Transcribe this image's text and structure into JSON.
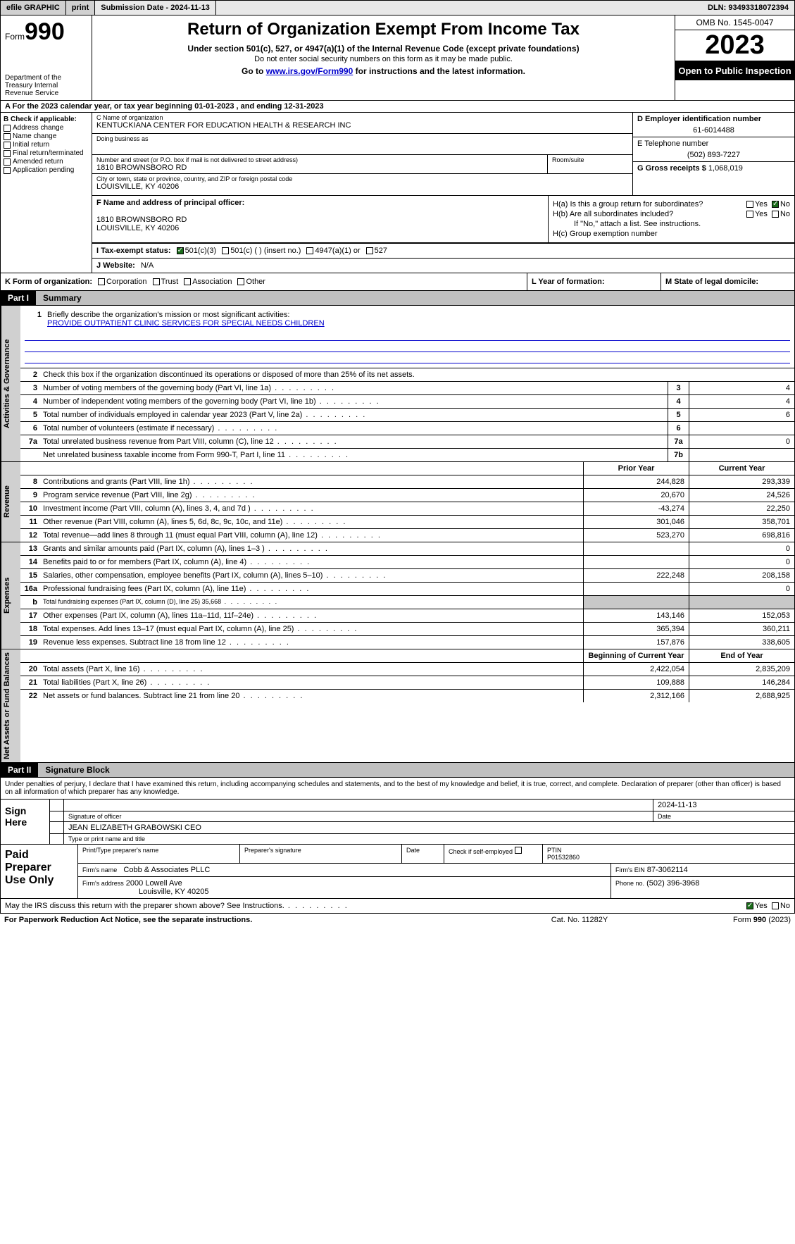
{
  "topbar": {
    "efile": "efile GRAPHIC",
    "print": "print",
    "submission": "Submission Date - 2024-11-13",
    "dln": "DLN: 93493318072394"
  },
  "header": {
    "form_prefix": "Form",
    "form_num": "990",
    "title": "Return of Organization Exempt From Income Tax",
    "subtitle": "Under section 501(c), 527, or 4947(a)(1) of the Internal Revenue Code (except private foundations)",
    "note1": "Do not enter social security numbers on this form as it may be made public.",
    "go_prefix": "Go to ",
    "go_link": "www.irs.gov/Form990",
    "go_suffix": " for instructions and the latest information.",
    "dept": "Department of the Treasury Internal Revenue Service",
    "omb": "OMB No. 1545-0047",
    "year": "2023",
    "open": "Open to Public Inspection"
  },
  "row_a": "For the 2023 calendar year, or tax year beginning 01-01-2023    , and ending 12-31-2023",
  "box_b": {
    "label": "B Check if applicable:",
    "items": [
      "Address change",
      "Name change",
      "Initial return",
      "Final return/terminated",
      "Amended return",
      "Application pending"
    ]
  },
  "box_c": {
    "name_lbl": "C Name of organization",
    "name": "KENTUCKIANA CENTER FOR EDUCATION HEALTH & RESEARCH INC",
    "dba_lbl": "Doing business as",
    "addr_lbl": "Number and street (or P.O. box if mail is not delivered to street address)",
    "addr": "1810 BROWNSBORO RD",
    "room_lbl": "Room/suite",
    "city_lbl": "City or town, state or province, country, and ZIP or foreign postal code",
    "city": "LOUISVILLE, KY  40206"
  },
  "box_d": {
    "lbl": "D Employer identification number",
    "val": "61-6014488"
  },
  "box_e": {
    "lbl": "E Telephone number",
    "val": "(502) 893-7227"
  },
  "box_g": {
    "lbl": "G Gross receipts $",
    "val": "1,068,019"
  },
  "box_f": {
    "lbl": "F  Name and address of principal officer:",
    "line1": "1810 BROWNSBORO RD",
    "line2": "LOUISVILLE, KY  40206"
  },
  "box_h": {
    "a_lbl": "H(a)  Is this a group return for subordinates?",
    "b_lbl": "H(b)  Are all subordinates included?",
    "b_note": "If \"No,\" attach a list. See instructions.",
    "c_lbl": "H(c)  Group exemption number",
    "yes": "Yes",
    "no": "No"
  },
  "box_i": {
    "lbl": "I    Tax-exempt status:",
    "opt1": "501(c)(3)",
    "opt2": "501(c) (  ) (insert no.)",
    "opt3": "4947(a)(1) or",
    "opt4": "527"
  },
  "box_j": {
    "lbl": "J   Website:",
    "val": "N/A"
  },
  "box_k": {
    "lbl": "K Form of organization:",
    "opts": [
      "Corporation",
      "Trust",
      "Association",
      "Other"
    ]
  },
  "box_l": "L Year of formation:",
  "box_m": "M State of legal domicile:",
  "part1": {
    "tag": "Part I",
    "title": "Summary"
  },
  "mission": {
    "lbl": "Briefly describe the organization's mission or most significant activities:",
    "text": "PROVIDE OUTPATIENT CLINIC SERVICES FOR SPECIAL NEEDS CHILDREN"
  },
  "line2": "Check this box      if the organization discontinued its operations or disposed of more than 25% of its net assets.",
  "gov_rows": [
    {
      "n": "3",
      "t": "Number of voting members of the governing body (Part VI, line 1a)",
      "box": "3",
      "v": "4"
    },
    {
      "n": "4",
      "t": "Number of independent voting members of the governing body (Part VI, line 1b)",
      "box": "4",
      "v": "4"
    },
    {
      "n": "5",
      "t": "Total number of individuals employed in calendar year 2023 (Part V, line 2a)",
      "box": "5",
      "v": "6"
    },
    {
      "n": "6",
      "t": "Total number of volunteers (estimate if necessary)",
      "box": "6",
      "v": ""
    },
    {
      "n": "7a",
      "t": "Total unrelated business revenue from Part VIII, column (C), line 12",
      "box": "7a",
      "v": "0"
    },
    {
      "n": "",
      "t": "Net unrelated business taxable income from Form 990-T, Part I, line 11",
      "box": "7b",
      "v": ""
    }
  ],
  "col_hdrs": {
    "prior": "Prior Year",
    "current": "Current Year",
    "begin": "Beginning of Current Year",
    "end": "End of Year"
  },
  "rev_rows": [
    {
      "n": "8",
      "t": "Contributions and grants (Part VIII, line 1h)",
      "p": "244,828",
      "c": "293,339"
    },
    {
      "n": "9",
      "t": "Program service revenue (Part VIII, line 2g)",
      "p": "20,670",
      "c": "24,526"
    },
    {
      "n": "10",
      "t": "Investment income (Part VIII, column (A), lines 3, 4, and 7d )",
      "p": "-43,274",
      "c": "22,250"
    },
    {
      "n": "11",
      "t": "Other revenue (Part VIII, column (A), lines 5, 6d, 8c, 9c, 10c, and 11e)",
      "p": "301,046",
      "c": "358,701"
    },
    {
      "n": "12",
      "t": "Total revenue—add lines 8 through 11 (must equal Part VIII, column (A), line 12)",
      "p": "523,270",
      "c": "698,816"
    }
  ],
  "exp_rows": [
    {
      "n": "13",
      "t": "Grants and similar amounts paid (Part IX, column (A), lines 1–3 )",
      "p": "",
      "c": "0"
    },
    {
      "n": "14",
      "t": "Benefits paid to or for members (Part IX, column (A), line 4)",
      "p": "",
      "c": "0"
    },
    {
      "n": "15",
      "t": "Salaries, other compensation, employee benefits (Part IX, column (A), lines 5–10)",
      "p": "222,248",
      "c": "208,158"
    },
    {
      "n": "16a",
      "t": "Professional fundraising fees (Part IX, column (A), line 11e)",
      "p": "",
      "c": "0"
    },
    {
      "n": "b",
      "t": "Total fundraising expenses (Part IX, column (D), line 25) 35,668",
      "p": "",
      "c": "",
      "shade": true,
      "small": true
    },
    {
      "n": "17",
      "t": "Other expenses (Part IX, column (A), lines 11a–11d, 11f–24e)",
      "p": "143,146",
      "c": "152,053"
    },
    {
      "n": "18",
      "t": "Total expenses. Add lines 13–17 (must equal Part IX, column (A), line 25)",
      "p": "365,394",
      "c": "360,211"
    },
    {
      "n": "19",
      "t": "Revenue less expenses. Subtract line 18 from line 12",
      "p": "157,876",
      "c": "338,605"
    }
  ],
  "net_rows": [
    {
      "n": "20",
      "t": "Total assets (Part X, line 16)",
      "p": "2,422,054",
      "c": "2,835,209"
    },
    {
      "n": "21",
      "t": "Total liabilities (Part X, line 26)",
      "p": "109,888",
      "c": "146,284"
    },
    {
      "n": "22",
      "t": "Net assets or fund balances. Subtract line 21 from line 20",
      "p": "2,312,166",
      "c": "2,688,925"
    }
  ],
  "vtabs": {
    "gov": "Activities & Governance",
    "rev": "Revenue",
    "exp": "Expenses",
    "net": "Net Assets or Fund Balances"
  },
  "part2": {
    "tag": "Part II",
    "title": "Signature Block"
  },
  "sig_intro": "Under penalties of perjury, I declare that I have examined this return, including accompanying schedules and statements, and to the best of my knowledge and belief, it is true, correct, and complete. Declaration of preparer (other than officer) is based on all information of which preparer has any knowledge.",
  "sign": {
    "here": "Sign Here",
    "date": "2024-11-13",
    "sig_lbl": "Signature of officer",
    "date_lbl": "Date",
    "officer": "JEAN ELIZABETH GRABOWSKI CEO",
    "type_lbl": "Type or print name and title"
  },
  "paid": {
    "lbl": "Paid Preparer Use Only",
    "name_lbl": "Print/Type preparer's name",
    "sig_lbl": "Preparer's signature",
    "date_lbl": "Date",
    "chk_lbl": "Check        if self-employed",
    "ptin_lbl": "PTIN",
    "ptin": "P01532860",
    "firm_name_lbl": "Firm's name",
    "firm_name": "Cobb & Associates PLLC",
    "firm_ein_lbl": "Firm's EIN",
    "firm_ein": "87-3062114",
    "firm_addr_lbl": "Firm's address",
    "firm_addr1": "2000 Lowell Ave",
    "firm_addr2": "Louisville, KY  40205",
    "phone_lbl": "Phone no.",
    "phone": "(502) 396-3968"
  },
  "discuss": {
    "q": "May the IRS discuss this return with the preparer shown above? See Instructions.",
    "yes": "Yes",
    "no": "No"
  },
  "footer": {
    "l": "For Paperwork Reduction Act Notice, see the separate instructions.",
    "m": "Cat. No. 11282Y",
    "r": "Form 990 (2023)"
  }
}
